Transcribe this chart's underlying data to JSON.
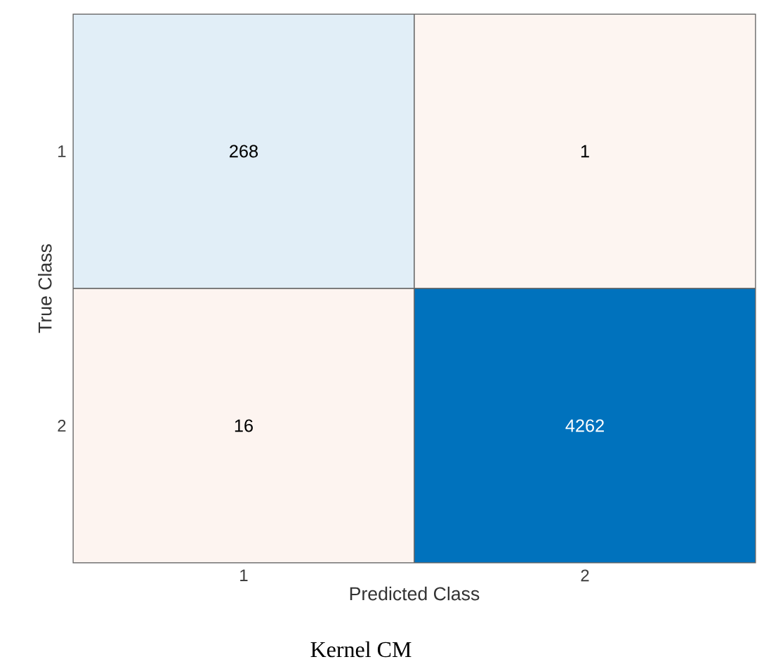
{
  "chart_data": {
    "type": "heatmap",
    "xlabel": "Predicted Class",
    "ylabel": "True Class",
    "categories": [
      "1",
      "2"
    ],
    "y_categories": [
      "1",
      "2"
    ],
    "cells": [
      [
        268,
        1
      ],
      [
        16,
        4262
      ]
    ],
    "data_labels": true,
    "annotations": [
      "Kernel CM"
    ]
  }
}
